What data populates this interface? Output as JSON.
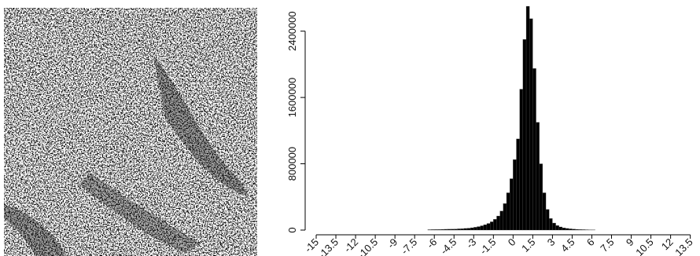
{
  "raster_image": {
    "kind": "classified-change-map",
    "colors": {
      "background": "#c0c0c0",
      "negative": "#000000",
      "positive": "#ffffff"
    }
  },
  "chart_data": {
    "type": "bar",
    "title": "",
    "xlabel": "",
    "ylabel": "",
    "bar_color": "#000000",
    "ylim": [
      0,
      2700000
    ],
    "y_ticks": [
      0,
      800000,
      1600000,
      2400000
    ],
    "y_tick_labels": [
      "0",
      "800000",
      "1600000",
      "2400000"
    ],
    "xlim": [
      -15,
      14
    ],
    "x_ticks": [
      -15,
      -13.5,
      -12,
      -10.5,
      -9,
      -7.5,
      -6,
      -4.5,
      -3,
      -1.5,
      0,
      1.5,
      3,
      4.5,
      6,
      7.5,
      9,
      10.5,
      12,
      13.5
    ],
    "x_tick_labels": [
      "-15",
      "-13.5",
      "-12",
      "-10.5",
      "-9",
      "-7.5",
      "-6",
      "-4.5",
      "-3",
      "-1.5",
      "0",
      "1.5",
      "3",
      "4.5",
      "6",
      "7.5",
      "9",
      "10.5",
      "12",
      "13.5"
    ],
    "bin_width": 0.25,
    "bins": [
      [
        -6.5,
        5000
      ],
      [
        -6.25,
        6000
      ],
      [
        -6.0,
        7000
      ],
      [
        -5.75,
        8000
      ],
      [
        -5.5,
        9000
      ],
      [
        -5.25,
        10000
      ],
      [
        -5.0,
        11000
      ],
      [
        -4.75,
        12000
      ],
      [
        -4.5,
        13000
      ],
      [
        -4.25,
        15000
      ],
      [
        -4.0,
        17000
      ],
      [
        -3.75,
        20000
      ],
      [
        -3.5,
        23000
      ],
      [
        -3.25,
        28000
      ],
      [
        -3.0,
        34000
      ],
      [
        -2.75,
        42000
      ],
      [
        -2.5,
        52000
      ],
      [
        -2.25,
        65000
      ],
      [
        -2.0,
        80000
      ],
      [
        -1.75,
        100000
      ],
      [
        -1.5,
        130000
      ],
      [
        -1.25,
        170000
      ],
      [
        -1.0,
        230000
      ],
      [
        -0.75,
        320000
      ],
      [
        -0.5,
        450000
      ],
      [
        -0.25,
        620000
      ],
      [
        0.0,
        850000
      ],
      [
        0.25,
        1100000
      ],
      [
        0.5,
        1700000
      ],
      [
        0.75,
        2300000
      ],
      [
        1.0,
        2700000
      ],
      [
        1.25,
        2550000
      ],
      [
        1.5,
        1950000
      ],
      [
        1.75,
        1300000
      ],
      [
        2.0,
        800000
      ],
      [
        2.25,
        450000
      ],
      [
        2.5,
        250000
      ],
      [
        2.75,
        140000
      ],
      [
        3.0,
        85000
      ],
      [
        3.25,
        55000
      ],
      [
        3.5,
        38000
      ],
      [
        3.75,
        27000
      ],
      [
        4.0,
        20000
      ],
      [
        4.25,
        15000
      ],
      [
        4.5,
        12000
      ],
      [
        4.75,
        9000
      ],
      [
        5.0,
        7000
      ],
      [
        5.25,
        5500
      ],
      [
        5.5,
        4500
      ],
      [
        5.75,
        3500
      ],
      [
        6.0,
        3000
      ]
    ]
  }
}
